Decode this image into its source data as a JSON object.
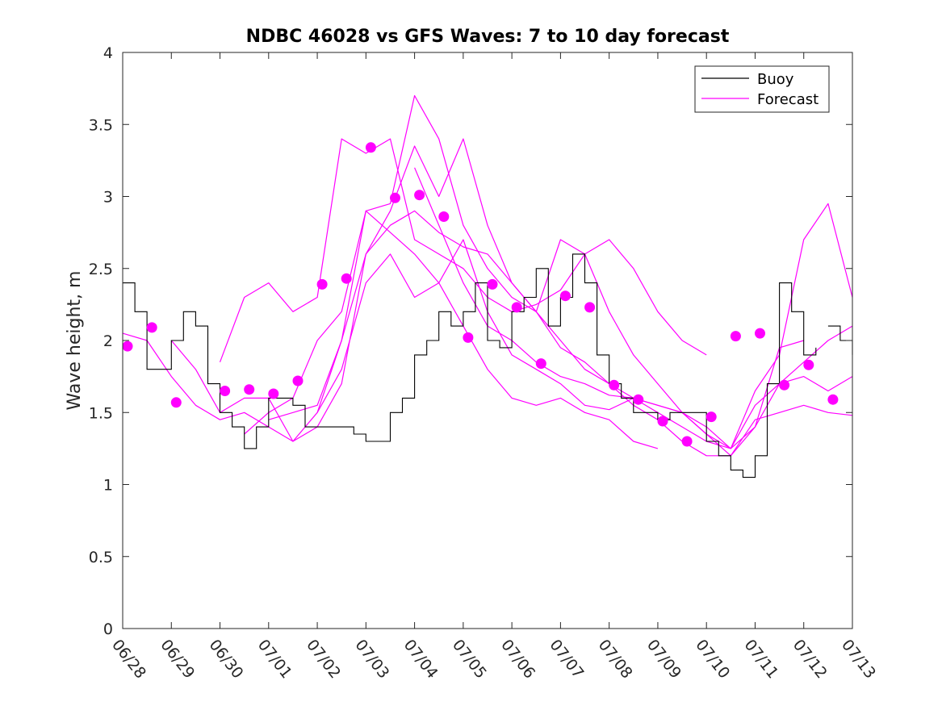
{
  "chart_data": {
    "type": "line",
    "title": "NDBC 46028 vs GFS Waves: 7 to 10 day forecast",
    "xlabel": "",
    "ylabel": "Wave height, m",
    "xlim": [
      0,
      15
    ],
    "ylim": [
      0,
      4
    ],
    "xtick_labels": [
      "06/28",
      "06/29",
      "06/30",
      "07/01",
      "07/02",
      "07/03",
      "07/04",
      "07/05",
      "07/06",
      "07/07",
      "07/08",
      "07/09",
      "07/10",
      "07/11",
      "07/12",
      "07/13"
    ],
    "ytick_values": [
      0,
      0.5,
      1,
      1.5,
      2,
      2.5,
      3,
      3.5,
      4
    ],
    "ytick_labels": [
      "0",
      "0.5",
      "1",
      "1.5",
      "2",
      "2.5",
      "3",
      "3.5",
      "4"
    ],
    "legend": {
      "position": "top-right",
      "entries": [
        "Buoy",
        "Forecast"
      ]
    },
    "colors": {
      "buoy": "#000000",
      "forecast": "#ff00ff",
      "axis": "#262626"
    },
    "buoy": {
      "name": "Buoy",
      "x": [
        0,
        0.25,
        0.5,
        0.75,
        1.0,
        1.25,
        1.5,
        1.75,
        2.0,
        2.25,
        2.5,
        2.75,
        3.0,
        3.25,
        3.5,
        3.75,
        4.0,
        4.25,
        4.5,
        4.75,
        5.0,
        5.25,
        5.5,
        5.75,
        6.0,
        6.25,
        6.5,
        6.75,
        7.0,
        7.25,
        7.5,
        7.75,
        8.0,
        8.25,
        8.5,
        8.75,
        9.0,
        9.25,
        9.5,
        9.75,
        10.0,
        10.25,
        10.5,
        10.75,
        11.0,
        11.25,
        11.5,
        11.75,
        12.0,
        12.25,
        12.5,
        12.75,
        13.0,
        13.25,
        13.5,
        13.75,
        14.0,
        14.25
      ],
      "y": [
        2.4,
        2.2,
        1.8,
        1.8,
        2.0,
        2.2,
        2.1,
        1.7,
        1.5,
        1.4,
        1.25,
        1.4,
        1.6,
        1.6,
        1.55,
        1.4,
        1.4,
        1.4,
        1.4,
        1.35,
        1.3,
        1.3,
        1.5,
        1.6,
        1.9,
        2.0,
        2.2,
        2.1,
        2.2,
        2.4,
        2.0,
        1.95,
        2.2,
        2.3,
        2.5,
        2.1,
        2.3,
        2.6,
        2.4,
        1.9,
        1.7,
        1.6,
        1.5,
        1.5,
        1.45,
        1.5,
        1.5,
        1.5,
        1.3,
        1.2,
        1.1,
        1.05,
        1.2,
        1.7,
        2.4,
        2.2,
        1.9,
        1.95
      ]
    },
    "buoy_extra": {
      "x": [
        14.5,
        14.75,
        15.0
      ],
      "y": [
        2.1,
        2.0,
        1.9
      ]
    },
    "forecast_series": [
      {
        "x": [
          0,
          0.5,
          1,
          1.5,
          2,
          2.5,
          3,
          3.5,
          4,
          4.5,
          5,
          5.5,
          6,
          6.5,
          7,
          7.5,
          8,
          8.5,
          9,
          9.5,
          10,
          10.5,
          11,
          11.5,
          12,
          12.5,
          13,
          13.5,
          14,
          14.5,
          15
        ],
        "y": [
          2.05,
          2.0,
          1.75,
          1.55,
          1.45,
          1.5,
          1.4,
          1.3,
          1.4,
          1.7,
          2.6,
          2.8,
          2.9,
          2.75,
          2.65,
          2.6,
          2.4,
          2.2,
          1.95,
          1.85,
          1.7,
          1.55,
          1.45,
          1.3,
          1.2,
          1.2,
          1.45,
          1.5,
          1.55,
          1.5,
          1.48
        ]
      },
      {
        "x": [
          1,
          1.5,
          2,
          2.5,
          3,
          3.5,
          4,
          4.5,
          5,
          5.5,
          6,
          6.5,
          7,
          7.5,
          8,
          8.5,
          9,
          9.5,
          10,
          10.5,
          11
        ],
        "y": [
          2.0,
          1.8,
          1.5,
          1.6,
          1.6,
          1.3,
          1.5,
          2.0,
          2.9,
          2.75,
          2.6,
          2.4,
          2.1,
          1.8,
          1.6,
          1.55,
          1.6,
          1.5,
          1.45,
          1.3,
          1.25
        ]
      },
      {
        "x": [
          2,
          2.5,
          3,
          3.5,
          4,
          4.5,
          5,
          5.5,
          6,
          6.5,
          7,
          7.5,
          8,
          8.5,
          9,
          9.5,
          10,
          10.5,
          11,
          11.5,
          12
        ],
        "y": [
          1.85,
          2.3,
          2.4,
          2.2,
          2.3,
          3.4,
          3.3,
          3.4,
          2.7,
          2.6,
          2.5,
          2.3,
          2.2,
          2.25,
          2.35,
          2.6,
          2.7,
          2.5,
          2.2,
          2.0,
          1.9
        ]
      },
      {
        "x": [
          2.5,
          3,
          3.5,
          4,
          4.5,
          5,
          5.5,
          6,
          6.5,
          7,
          7.5,
          8,
          8.5,
          9,
          9.5,
          10,
          10.5,
          11,
          11.5,
          12,
          12.5,
          13,
          13.5,
          14,
          14.5,
          15
        ],
        "y": [
          1.35,
          1.5,
          1.6,
          2.0,
          2.2,
          2.9,
          2.95,
          3.7,
          3.4,
          2.8,
          2.5,
          2.3,
          2.2,
          2.7,
          2.6,
          2.2,
          1.9,
          1.7,
          1.5,
          1.4,
          1.25,
          1.4,
          1.7,
          1.85,
          2.0,
          2.1
        ]
      },
      {
        "x": [
          3,
          3.5,
          4,
          4.5,
          5,
          5.5,
          6,
          6.5,
          7,
          7.5,
          8,
          8.5,
          9,
          9.5,
          10,
          10.5,
          11,
          11.5,
          12,
          12.5,
          13,
          13.5,
          14,
          14.5,
          15
        ],
        "y": [
          1.45,
          1.5,
          1.55,
          2.0,
          2.6,
          2.9,
          3.35,
          3.0,
          3.4,
          2.8,
          2.4,
          2.2,
          2.0,
          1.8,
          1.7,
          1.6,
          1.5,
          1.4,
          1.3,
          1.25,
          1.65,
          1.9,
          2.7,
          2.95,
          2.3
        ]
      },
      {
        "x": [
          4,
          4.5,
          5,
          5.5,
          6,
          6.5,
          7,
          7.5,
          8,
          8.5,
          9,
          9.5,
          10,
          10.5,
          11,
          11.5,
          12,
          12.5,
          13,
          13.5,
          14
        ],
        "y": [
          1.5,
          1.8,
          2.4,
          2.6,
          2.3,
          2.4,
          2.7,
          2.2,
          1.9,
          1.8,
          1.7,
          1.55,
          1.52,
          1.6,
          1.55,
          1.5,
          1.35,
          1.2,
          1.4,
          1.95,
          2.0
        ]
      },
      {
        "x": [
          6,
          6.5,
          7,
          7.5,
          8,
          8.5,
          9,
          9.5,
          10,
          10.5,
          11,
          11.5,
          12,
          12.5,
          13,
          13.5,
          14,
          14.5,
          15
        ],
        "y": [
          3.2,
          2.8,
          2.4,
          2.1,
          2.0,
          1.85,
          1.75,
          1.7,
          1.62,
          1.6,
          1.55,
          1.5,
          1.35,
          1.25,
          1.55,
          1.7,
          1.75,
          1.65,
          1.75
        ]
      }
    ],
    "forecast_points": {
      "x": [
        0.1,
        0.6,
        1.1,
        2.1,
        2.6,
        3.1,
        3.6,
        4.1,
        4.6,
        5.1,
        5.6,
        6.1,
        6.6,
        7.1,
        7.6,
        8.1,
        8.6,
        9.1,
        9.6,
        10.1,
        10.6,
        11.1,
        11.6,
        12.1,
        12.6,
        13.1,
        13.6,
        14.1,
        14.6
      ],
      "y": [
        1.96,
        2.09,
        1.57,
        1.65,
        1.66,
        1.63,
        1.72,
        2.39,
        2.43,
        3.34,
        2.99,
        3.01,
        2.86,
        2.02,
        2.39,
        2.23,
        1.84,
        2.31,
        2.23,
        1.69,
        1.59,
        1.44,
        1.3,
        1.47,
        2.03,
        2.05,
        1.69,
        1.83,
        1.59
      ]
    }
  }
}
